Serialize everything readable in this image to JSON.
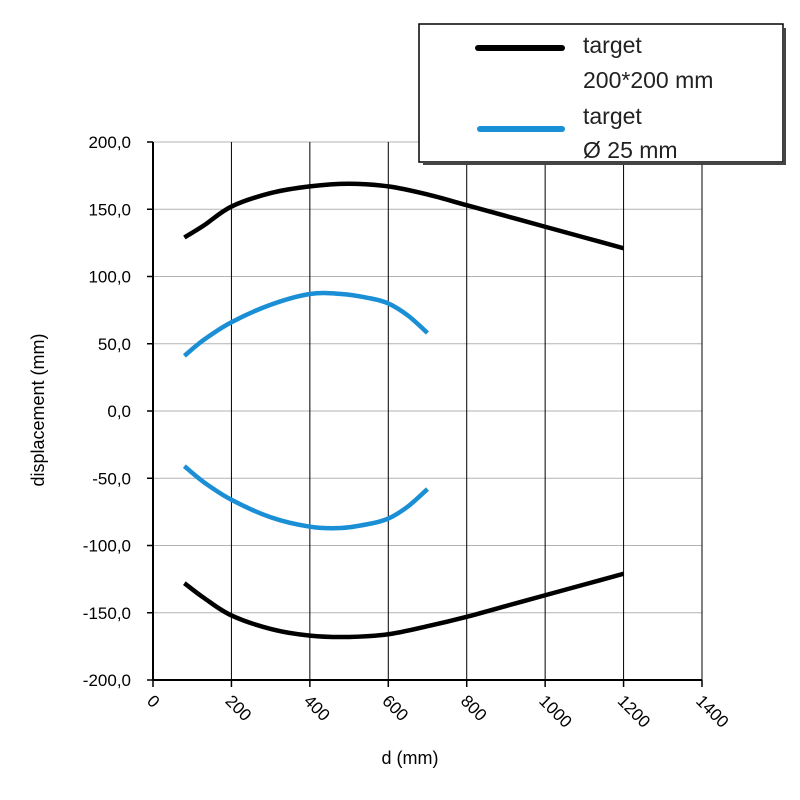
{
  "chart_data": {
    "type": "line",
    "title": "",
    "xlabel": "d (mm)",
    "ylabel": "displacement (mm)",
    "xlim": [
      0,
      1400
    ],
    "ylim": [
      -200,
      200
    ],
    "x_ticks": [
      0,
      200,
      400,
      600,
      800,
      1000,
      1200,
      1400
    ],
    "x_tick_labels": [
      "0",
      "200",
      "400",
      "600",
      "800",
      "1000",
      "1200",
      "1400"
    ],
    "y_ticks": [
      200,
      150,
      100,
      50,
      0,
      -50,
      -100,
      -150,
      -200
    ],
    "y_tick_labels": [
      "200,0",
      "150,0",
      "100,0",
      "50,0",
      "0,0",
      "-50,0",
      "-100,0",
      "-150,0",
      "-200,0"
    ],
    "grid": "both",
    "legend_position": "top-right",
    "legend": [
      {
        "line1": "target",
        "line2": "200*200 mm",
        "color": "#000000"
      },
      {
        "line1": "target",
        "line2": "Ø 25 mm",
        "color": "#1a8fd6"
      }
    ],
    "series": [
      {
        "group": 0,
        "color": "#000000",
        "x": [
          80,
          130,
          200,
          300,
          400,
          500,
          600,
          700,
          800,
          900,
          1000,
          1100,
          1200
        ],
        "y": [
          129,
          138,
          152,
          162,
          167,
          169,
          167,
          161,
          153,
          145,
          137,
          129,
          121
        ]
      },
      {
        "group": 0,
        "color": "#000000",
        "x": [
          80,
          130,
          200,
          300,
          400,
          500,
          600,
          700,
          800,
          900,
          1000,
          1100,
          1200
        ],
        "y": [
          -128,
          -139,
          -152,
          -162,
          -167,
          -168,
          -166,
          -160,
          -153,
          -145,
          -137,
          -129,
          -121
        ]
      },
      {
        "group": 1,
        "color": "#1a8fd6",
        "x": [
          80,
          130,
          200,
          300,
          400,
          480,
          550,
          600,
          650,
          700
        ],
        "y": [
          41,
          53,
          66,
          79,
          87,
          87,
          84,
          80,
          71,
          58
        ]
      },
      {
        "group": 1,
        "color": "#1a8fd6",
        "x": [
          80,
          130,
          200,
          300,
          400,
          480,
          550,
          600,
          650,
          700
        ],
        "y": [
          -41,
          -53,
          -66,
          -79,
          -86,
          -87,
          -84,
          -80,
          -71,
          -58
        ]
      }
    ]
  }
}
